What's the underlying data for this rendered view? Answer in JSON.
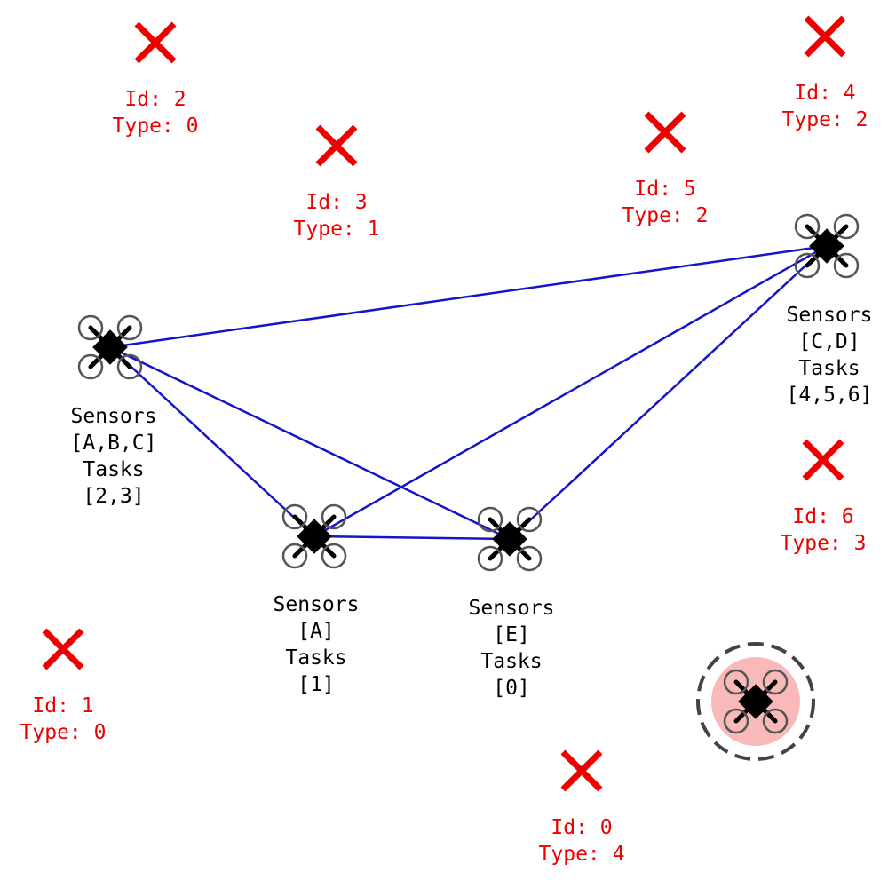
{
  "colors": {
    "link": "#1515c8",
    "task_marker": "#ee0000",
    "task_text": "#ee0000",
    "drone_text": "#000000",
    "drone_body": "#000000",
    "rotor": "#555555",
    "highlight_fill": "#f9b9b9",
    "highlight_ring": "#444444"
  },
  "drones": [
    {
      "id": "drone-1",
      "label": [
        "Sensors",
        "[A,B,C]",
        "Tasks",
        "[2,3]"
      ]
    },
    {
      "id": "drone-2",
      "label": [
        "Sensors",
        "[C,D]",
        "Tasks",
        "[4,5,6]"
      ]
    },
    {
      "id": "drone-3",
      "label": [
        "Sensors",
        "[A]",
        "Tasks",
        "[1]"
      ]
    },
    {
      "id": "drone-4",
      "label": [
        "Sensors",
        "[E]",
        "Tasks",
        "[0]"
      ]
    },
    {
      "id": "drone-5",
      "label": [],
      "highlighted": true
    }
  ],
  "links": [
    [
      "drone-1",
      "drone-2"
    ],
    [
      "drone-1",
      "drone-3"
    ],
    [
      "drone-1",
      "drone-4"
    ],
    [
      "drone-3",
      "drone-2"
    ],
    [
      "drone-3",
      "drone-4"
    ],
    [
      "drone-4",
      "drone-2"
    ]
  ],
  "tasks": [
    {
      "id_line": "Id: 0",
      "type_line": "Type: 4"
    },
    {
      "id_line": "Id: 1",
      "type_line": "Type: 0"
    },
    {
      "id_line": "Id: 2",
      "type_line": "Type: 0"
    },
    {
      "id_line": "Id: 3",
      "type_line": "Type: 1"
    },
    {
      "id_line": "Id: 4",
      "type_line": "Type: 2"
    },
    {
      "id_line": "Id: 5",
      "type_line": "Type: 2"
    },
    {
      "id_line": "Id: 6",
      "type_line": "Type: 3"
    }
  ]
}
